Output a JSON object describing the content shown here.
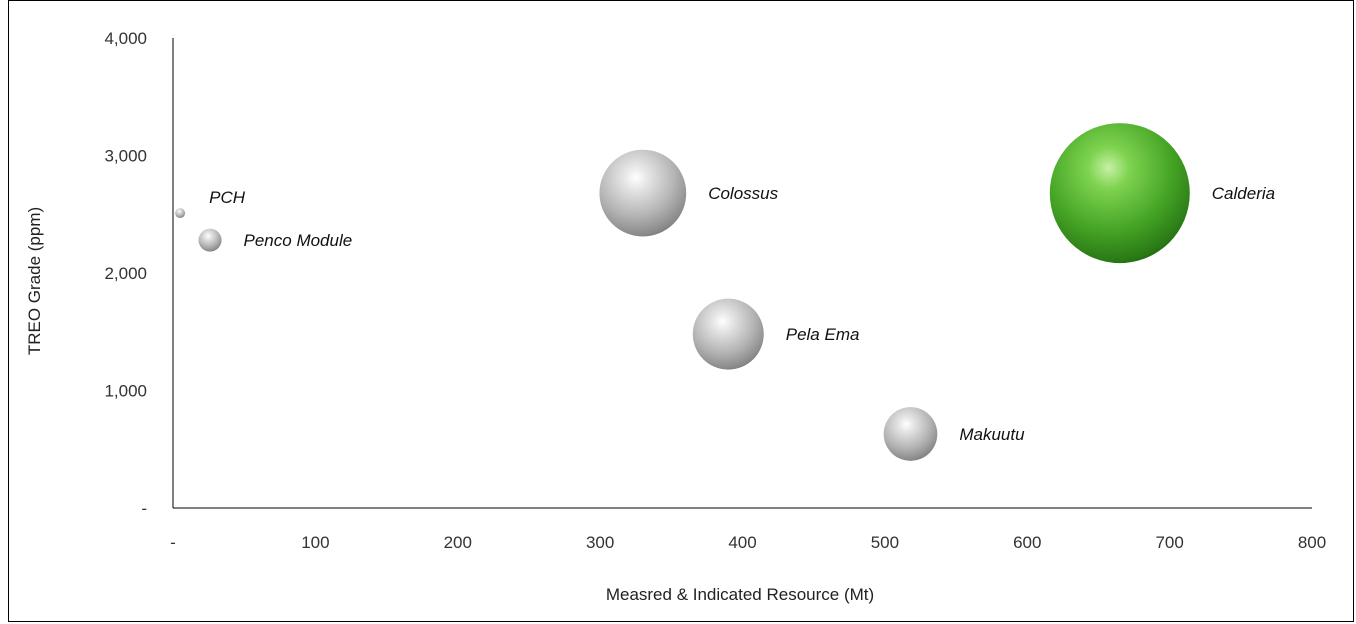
{
  "chart_data": {
    "type": "bubble",
    "title": "",
    "xlabel": "Measred & Indicated Resource (Mt)",
    "ylabel": "TREO Grade (ppm)",
    "xlim": [
      0,
      800
    ],
    "ylim": [
      0,
      4000
    ],
    "xticks": [
      0,
      100,
      200,
      300,
      400,
      500,
      600,
      700,
      800
    ],
    "yticks": [
      0,
      1000,
      2000,
      3000,
      4000
    ],
    "xtick_labels": [
      "-",
      "100",
      "200",
      "300",
      "400",
      "500",
      "600",
      "700",
      "800"
    ],
    "ytick_labels": [
      "-",
      "1,000",
      "2,000",
      "3,000",
      "4,000"
    ],
    "grid": false,
    "legend": "none",
    "colors": {
      "default": "#b8b8b8",
      "highlight": "#4caa2c"
    },
    "points": [
      {
        "label": "PCH",
        "x": 5,
        "y": 2510,
        "size": 5,
        "highlight": false
      },
      {
        "label": "Penco Module",
        "x": 26,
        "y": 2280,
        "size": 27,
        "highlight": false
      },
      {
        "label": "Colossus",
        "x": 330,
        "y": 2680,
        "size": 384,
        "highlight": false
      },
      {
        "label": "Calderia",
        "x": 665,
        "y": 2680,
        "size": 1000,
        "highlight": true
      },
      {
        "label": "Pela Ema",
        "x": 390,
        "y": 1480,
        "size": 257,
        "highlight": false
      },
      {
        "label": "Makuutu",
        "x": 518,
        "y": 630,
        "size": 147,
        "highlight": false
      }
    ]
  }
}
